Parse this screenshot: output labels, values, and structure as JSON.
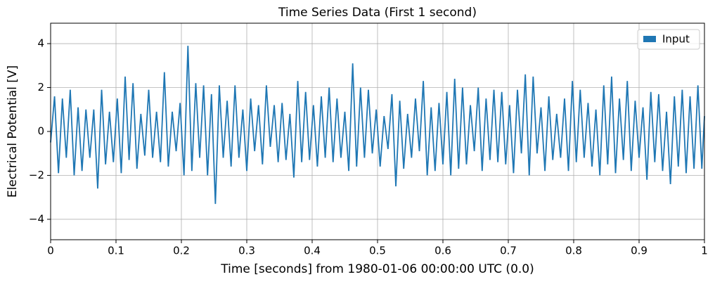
{
  "chart_data": {
    "type": "line",
    "title": "Time Series Data (First 1 second)",
    "xlabel": "Time [seconds] from 1980-01-06 00:00:00 UTC (0.0)",
    "ylabel": "Electrical Potential [V]",
    "x": [
      0,
      0.006,
      0.012,
      0.018,
      0.024,
      0.03,
      0.036,
      0.042,
      0.048,
      0.054,
      0.06,
      0.066,
      0.072,
      0.078,
      0.084,
      0.09,
      0.096,
      0.102,
      0.108,
      0.114,
      0.12,
      0.126,
      0.132,
      0.138,
      0.144,
      0.15,
      0.156,
      0.162,
      0.168,
      0.174,
      0.18,
      0.186,
      0.192,
      0.198,
      0.204,
      0.21,
      0.216,
      0.222,
      0.228,
      0.234,
      0.24,
      0.246,
      0.252,
      0.258,
      0.264,
      0.27,
      0.276,
      0.282,
      0.288,
      0.294,
      0.3,
      0.306,
      0.312,
      0.318,
      0.324,
      0.33,
      0.336,
      0.342,
      0.348,
      0.354,
      0.36,
      0.366,
      0.372,
      0.378,
      0.384,
      0.39,
      0.396,
      0.402,
      0.408,
      0.414,
      0.42,
      0.426,
      0.432,
      0.438,
      0.444,
      0.45,
      0.456,
      0.462,
      0.468,
      0.474,
      0.48,
      0.486,
      0.492,
      0.498,
      0.504,
      0.51,
      0.516,
      0.522,
      0.528,
      0.534,
      0.54,
      0.546,
      0.552,
      0.558,
      0.564,
      0.57,
      0.576,
      0.582,
      0.588,
      0.594,
      0.6,
      0.606,
      0.612,
      0.618,
      0.624,
      0.63,
      0.636,
      0.642,
      0.648,
      0.654,
      0.66,
      0.666,
      0.672,
      0.678,
      0.684,
      0.69,
      0.696,
      0.702,
      0.708,
      0.714,
      0.72,
      0.726,
      0.732,
      0.738,
      0.744,
      0.75,
      0.756,
      0.762,
      0.768,
      0.774,
      0.78,
      0.786,
      0.792,
      0.798,
      0.804,
      0.81,
      0.816,
      0.822,
      0.828,
      0.834,
      0.84,
      0.846,
      0.852,
      0.858,
      0.864,
      0.87,
      0.876,
      0.882,
      0.888,
      0.894,
      0.9,
      0.906,
      0.912,
      0.918,
      0.924,
      0.93,
      0.936,
      0.942,
      0.948,
      0.954,
      0.96,
      0.966,
      0.972,
      0.978,
      0.984,
      0.99,
      0.996,
      1.0
    ],
    "series": [
      {
        "name": "Input",
        "color": "#1f77b4",
        "values": [
          -0.5,
          1.6,
          -1.9,
          1.5,
          -1.2,
          1.9,
          -2.0,
          1.1,
          -1.8,
          1.0,
          -1.2,
          1.0,
          -2.6,
          1.9,
          -1.5,
          0.9,
          -1.4,
          1.5,
          -1.9,
          2.5,
          -1.3,
          2.2,
          -1.7,
          0.8,
          -1.1,
          1.9,
          -1.2,
          0.9,
          -1.4,
          2.7,
          -1.6,
          0.9,
          -0.9,
          1.3,
          -2.0,
          3.9,
          -1.8,
          2.2,
          -1.2,
          2.1,
          -2.0,
          1.7,
          -3.3,
          2.1,
          -1.2,
          1.4,
          -1.6,
          2.1,
          -1.2,
          1.0,
          -1.8,
          1.5,
          -0.9,
          1.2,
          -1.5,
          2.1,
          -0.7,
          1.2,
          -1.4,
          1.3,
          -1.3,
          0.8,
          -2.1,
          2.3,
          -1.4,
          1.8,
          -1.3,
          1.2,
          -1.6,
          1.6,
          -1.2,
          2.0,
          -1.4,
          1.5,
          -1.2,
          0.9,
          -1.8,
          3.1,
          -1.6,
          2.0,
          -1.2,
          1.9,
          -1.0,
          1.0,
          -1.6,
          0.7,
          -0.8,
          1.7,
          -2.5,
          1.4,
          -1.7,
          0.8,
          -1.2,
          1.5,
          -0.9,
          2.3,
          -2.0,
          1.1,
          -1.8,
          1.3,
          -1.5,
          1.8,
          -2.0,
          2.4,
          -1.7,
          2.0,
          -1.5,
          1.2,
          -0.9,
          2.0,
          -1.8,
          1.5,
          -1.3,
          1.9,
          -1.4,
          1.8,
          -1.5,
          1.2,
          -1.9,
          1.9,
          -1.0,
          2.6,
          -2.0,
          2.5,
          -1.0,
          1.1,
          -1.8,
          1.6,
          -1.3,
          0.8,
          -1.2,
          1.5,
          -1.8,
          2.3,
          -1.4,
          1.9,
          -1.2,
          1.3,
          -1.6,
          1.0,
          -2.0,
          2.1,
          -1.5,
          2.5,
          -1.9,
          1.5,
          -1.3,
          2.3,
          -1.8,
          1.4,
          -1.2,
          1.1,
          -2.2,
          1.8,
          -1.4,
          1.7,
          -1.8,
          0.9,
          -2.4,
          1.6,
          -1.6,
          1.9,
          -1.9,
          1.6,
          -1.7,
          2.1,
          -1.7,
          0.7
        ]
      }
    ],
    "xlim": [
      0,
      1
    ],
    "ylim": [
      -4.93,
      4.93
    ],
    "xticks": [
      0,
      0.1,
      0.2,
      0.3,
      0.4,
      0.5,
      0.6,
      0.7,
      0.8,
      0.9,
      1
    ],
    "yticks": [
      {
        "value": -4,
        "label": "−4"
      },
      {
        "value": -2,
        "label": "−2"
      },
      0,
      2,
      4
    ],
    "grid": true,
    "legend": "upper right"
  }
}
